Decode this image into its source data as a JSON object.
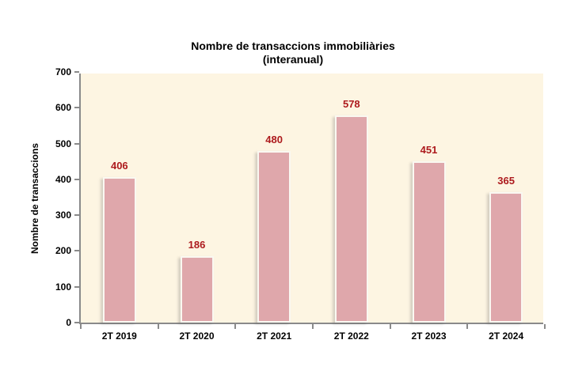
{
  "chart_data": {
    "type": "bar",
    "title": "Nombre de transaccions immobiliàries",
    "subtitle": "(interanual)",
    "xlabel": "",
    "ylabel": "Nombre de transaccions",
    "categories": [
      "2T 2019",
      "2T 2020",
      "2T 2021",
      "2T 2022",
      "2T 2023",
      "2T 2024"
    ],
    "values": [
      406,
      186,
      480,
      578,
      451,
      365
    ],
    "ylim": [
      0,
      700
    ],
    "y_ticks": [
      0,
      100,
      200,
      300,
      400,
      500,
      600,
      700
    ],
    "grid": false,
    "legend": "none",
    "value_labels_shown": true,
    "colors": {
      "bar_fill": "#DFA7AB",
      "bar_border": "#FAF8F1",
      "value_label": "#AD1A1D",
      "plot_background": "#FDF5E2",
      "axis_line": "#8a8a8a",
      "page_background": "#FFFFFF",
      "text": "#000000"
    }
  }
}
